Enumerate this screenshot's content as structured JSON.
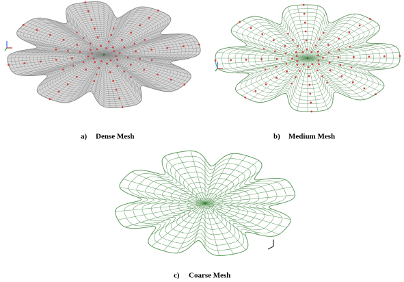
{
  "panels": [
    {
      "label": "a)",
      "caption": "Dense Mesh"
    },
    {
      "label": "b)",
      "caption": "Medium Mesh"
    },
    {
      "label": "c)",
      "caption": "Coarse Mesh"
    }
  ]
}
